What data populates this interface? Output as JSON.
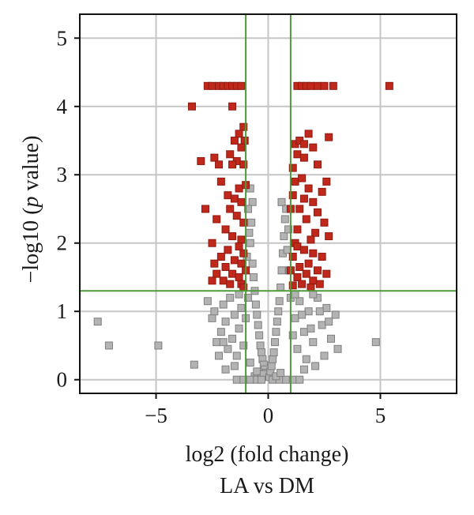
{
  "chart_data": {
    "type": "scatter",
    "title": "",
    "subtitle": "LA vs DM",
    "xlabel": "log2 (fold change)",
    "ylabel": "−log10 (p value)",
    "ylabel_parts": {
      "prefix": "−log10 (",
      "italic": "p",
      "suffix": " value)"
    },
    "xlim": [
      -8.4,
      8.4
    ],
    "ylim": [
      -0.2,
      5.35
    ],
    "xticks": [
      -5,
      0,
      5
    ],
    "xtick_labels": [
      "−5",
      "0",
      "5"
    ],
    "yticks": [
      0,
      1,
      2,
      3,
      4,
      5
    ],
    "ytick_labels": [
      "0",
      "1",
      "2",
      "3",
      "4",
      "5"
    ],
    "grid": true,
    "thresholds": {
      "x": [
        -1,
        1
      ],
      "y": 1.3
    },
    "colors": {
      "significant": "#c0281b",
      "significant_edge": "#8f1a10",
      "not_significant": "#b3b3b3",
      "not_significant_edge": "#7f7f7f",
      "threshold_line": "#4e9a3a",
      "grid": "#c6c6c6",
      "frame": "#111111"
    },
    "series": [
      {
        "values": [
          [
            -2.7,
            4.3
          ],
          [
            -2.5,
            4.3
          ],
          [
            -2.2,
            4.3
          ],
          [
            -2.0,
            4.3
          ],
          [
            -1.8,
            4.3
          ],
          [
            -1.6,
            4.3
          ],
          [
            -1.4,
            4.3
          ],
          [
            -1.2,
            4.3
          ],
          [
            1.3,
            4.3
          ],
          [
            1.5,
            4.3
          ],
          [
            1.7,
            4.3
          ],
          [
            1.9,
            4.3
          ],
          [
            2.2,
            4.3
          ],
          [
            2.5,
            4.3
          ],
          [
            2.9,
            4.3
          ],
          [
            5.4,
            4.3
          ],
          [
            -3.4,
            4.0
          ],
          [
            -1.6,
            4.0
          ],
          [
            -1.1,
            3.7
          ],
          [
            -1.3,
            3.6
          ],
          [
            -1.05,
            3.5
          ],
          [
            -1.5,
            3.5
          ],
          [
            -1.2,
            3.4
          ],
          [
            -1.7,
            3.3
          ],
          [
            -2.4,
            3.25
          ],
          [
            -2.2,
            3.15
          ],
          [
            -1.4,
            3.2
          ],
          [
            -1.1,
            3.15
          ],
          [
            -1.6,
            3.15
          ],
          [
            -3.0,
            3.2
          ],
          [
            1.2,
            3.45
          ],
          [
            1.4,
            3.5
          ],
          [
            1.6,
            3.45
          ],
          [
            1.8,
            3.6
          ],
          [
            2.0,
            3.4
          ],
          [
            2.7,
            3.55
          ],
          [
            1.3,
            3.3
          ],
          [
            1.6,
            3.25
          ],
          [
            2.2,
            3.15
          ],
          [
            1.1,
            3.1
          ],
          [
            -2.1,
            2.9
          ],
          [
            -1.3,
            2.8
          ],
          [
            -1.0,
            2.85
          ],
          [
            -1.8,
            2.7
          ],
          [
            -1.5,
            2.65
          ],
          [
            -1.2,
            2.6
          ],
          [
            -1.7,
            2.5
          ],
          [
            -2.8,
            2.5
          ],
          [
            -1.4,
            2.4
          ],
          [
            -2.3,
            2.35
          ],
          [
            -1.1,
            2.3
          ],
          [
            -1.9,
            2.2
          ],
          [
            -1.6,
            2.1
          ],
          [
            -1.2,
            2.05
          ],
          [
            -2.5,
            2.0
          ],
          [
            1.2,
            2.9
          ],
          [
            1.5,
            2.95
          ],
          [
            2.6,
            2.9
          ],
          [
            1.8,
            2.8
          ],
          [
            2.4,
            2.75
          ],
          [
            1.1,
            2.7
          ],
          [
            1.6,
            2.65
          ],
          [
            2.0,
            2.6
          ],
          [
            1.4,
            2.5
          ],
          [
            2.2,
            2.45
          ],
          [
            1.0,
            2.5
          ],
          [
            1.7,
            2.35
          ],
          [
            2.5,
            2.3
          ],
          [
            1.3,
            2.2
          ],
          [
            2.1,
            2.15
          ],
          [
            1.9,
            2.05
          ],
          [
            2.7,
            2.1
          ],
          [
            1.2,
            2.0
          ],
          [
            -1.3,
            1.95
          ],
          [
            -1.8,
            1.9
          ],
          [
            -1.1,
            1.85
          ],
          [
            -2.1,
            1.8
          ],
          [
            -1.5,
            1.75
          ],
          [
            -1.2,
            1.7
          ],
          [
            -1.9,
            1.65
          ],
          [
            -2.4,
            1.7
          ],
          [
            -1.0,
            1.6
          ],
          [
            -1.6,
            1.55
          ],
          [
            -1.3,
            1.5
          ],
          [
            -2.0,
            1.45
          ],
          [
            -1.2,
            1.4
          ],
          [
            -2.3,
            1.55
          ],
          [
            -1.7,
            1.4
          ],
          [
            -1.1,
            1.35
          ],
          [
            -2.5,
            1.45
          ],
          [
            1.3,
            1.95
          ],
          [
            1.6,
            1.9
          ],
          [
            2.0,
            1.85
          ],
          [
            1.1,
            1.8
          ],
          [
            2.4,
            1.8
          ],
          [
            1.8,
            1.7
          ],
          [
            1.4,
            1.65
          ],
          [
            2.2,
            1.6
          ],
          [
            1.0,
            1.6
          ],
          [
            1.7,
            1.55
          ],
          [
            2.6,
            1.55
          ],
          [
            1.3,
            1.5
          ],
          [
            2.0,
            1.45
          ],
          [
            1.5,
            1.4
          ],
          [
            1.1,
            1.38
          ],
          [
            2.3,
            1.4
          ],
          [
            1.9,
            1.35
          ]
        ]
      },
      {
        "values": [
          [
            -7.6,
            0.85
          ],
          [
            -7.1,
            0.5
          ],
          [
            -4.9,
            0.5
          ],
          [
            -3.3,
            0.22
          ],
          [
            -2.7,
            1.15
          ],
          [
            -2.5,
            0.9
          ],
          [
            -2.3,
            0.55
          ],
          [
            -2.4,
            1.0
          ],
          [
            -2.1,
            0.7
          ],
          [
            -2.0,
            1.1
          ],
          [
            -1.9,
            0.85
          ],
          [
            -1.8,
            0.45
          ],
          [
            -1.7,
            1.2
          ],
          [
            -1.6,
            0.6
          ],
          [
            -1.5,
            0.95
          ],
          [
            -1.4,
            0.35
          ],
          [
            -1.3,
            0.75
          ],
          [
            -1.2,
            1.05
          ],
          [
            -1.1,
            0.5
          ],
          [
            -1.0,
            0.9
          ],
          [
            -0.9,
            1.2
          ],
          [
            -0.8,
            0.25
          ],
          [
            -2.2,
            0.35
          ],
          [
            -1.9,
            0.15
          ],
          [
            -1.5,
            0.2
          ],
          [
            -1.3,
            1.25
          ],
          [
            -2.0,
            0.55
          ],
          [
            -0.7,
            2.6
          ],
          [
            -0.75,
            2.3
          ],
          [
            -0.8,
            2.0
          ],
          [
            -0.7,
            1.7
          ],
          [
            -0.65,
            1.5
          ],
          [
            -0.6,
            1.3
          ],
          [
            -0.55,
            1.1
          ],
          [
            -0.5,
            0.95
          ],
          [
            -0.45,
            0.8
          ],
          [
            -0.4,
            0.65
          ],
          [
            -0.35,
            0.5
          ],
          [
            -0.3,
            0.4
          ],
          [
            -0.25,
            0.3
          ],
          [
            -0.2,
            0.22
          ],
          [
            -0.15,
            0.15
          ],
          [
            -0.1,
            0.1
          ],
          [
            -0.05,
            0.06
          ],
          [
            -0.8,
            2.8
          ],
          [
            -0.9,
            2.5
          ],
          [
            -0.85,
            2.15
          ],
          [
            -0.95,
            1.8
          ],
          [
            -0.6,
            0.05
          ],
          [
            -0.5,
            0.12
          ],
          [
            -0.3,
            0.02
          ],
          [
            -0.2,
            0.08
          ],
          [
            -1.4,
            0.0
          ],
          [
            -1.1,
            0.0
          ],
          [
            -0.8,
            0.0
          ],
          [
            -0.5,
            0.0
          ],
          [
            -0.3,
            0.0
          ],
          [
            0.05,
            0.04
          ],
          [
            0.1,
            0.12
          ],
          [
            0.15,
            0.2
          ],
          [
            0.2,
            0.3
          ],
          [
            0.25,
            0.4
          ],
          [
            0.3,
            0.55
          ],
          [
            0.35,
            0.7
          ],
          [
            0.4,
            0.85
          ],
          [
            0.45,
            1.0
          ],
          [
            0.5,
            1.15
          ],
          [
            0.55,
            1.35
          ],
          [
            0.6,
            1.6
          ],
          [
            0.65,
            1.85
          ],
          [
            0.7,
            2.1
          ],
          [
            0.75,
            2.35
          ],
          [
            0.6,
            2.6
          ],
          [
            0.8,
            2.5
          ],
          [
            0.9,
            2.2
          ],
          [
            0.85,
            1.9
          ],
          [
            0.95,
            1.6
          ],
          [
            0.2,
            0.0
          ],
          [
            0.5,
            0.0
          ],
          [
            0.8,
            0.0
          ],
          [
            1.1,
            0.0
          ],
          [
            1.4,
            0.0
          ],
          [
            0.35,
            0.05
          ],
          [
            0.55,
            0.1
          ],
          [
            1.0,
            1.2
          ],
          [
            1.2,
            0.9
          ],
          [
            1.4,
            1.15
          ],
          [
            1.6,
            0.7
          ],
          [
            1.8,
            1.0
          ],
          [
            2.0,
            0.55
          ],
          [
            2.2,
            1.2
          ],
          [
            2.4,
            0.8
          ],
          [
            2.6,
            1.05
          ],
          [
            2.8,
            0.6
          ],
          [
            3.0,
            0.95
          ],
          [
            3.1,
            0.45
          ],
          [
            2.5,
            0.35
          ],
          [
            2.1,
            0.2
          ],
          [
            1.7,
            0.3
          ],
          [
            1.3,
            0.45
          ],
          [
            1.1,
            0.65
          ],
          [
            1.5,
            0.95
          ],
          [
            1.9,
            0.75
          ],
          [
            2.3,
            1.0
          ],
          [
            2.7,
            0.85
          ],
          [
            4.8,
            0.55
          ],
          [
            1.6,
            0.15
          ],
          [
            2.0,
            1.25
          ],
          [
            1.2,
            1.25
          ]
        ]
      }
    ]
  }
}
